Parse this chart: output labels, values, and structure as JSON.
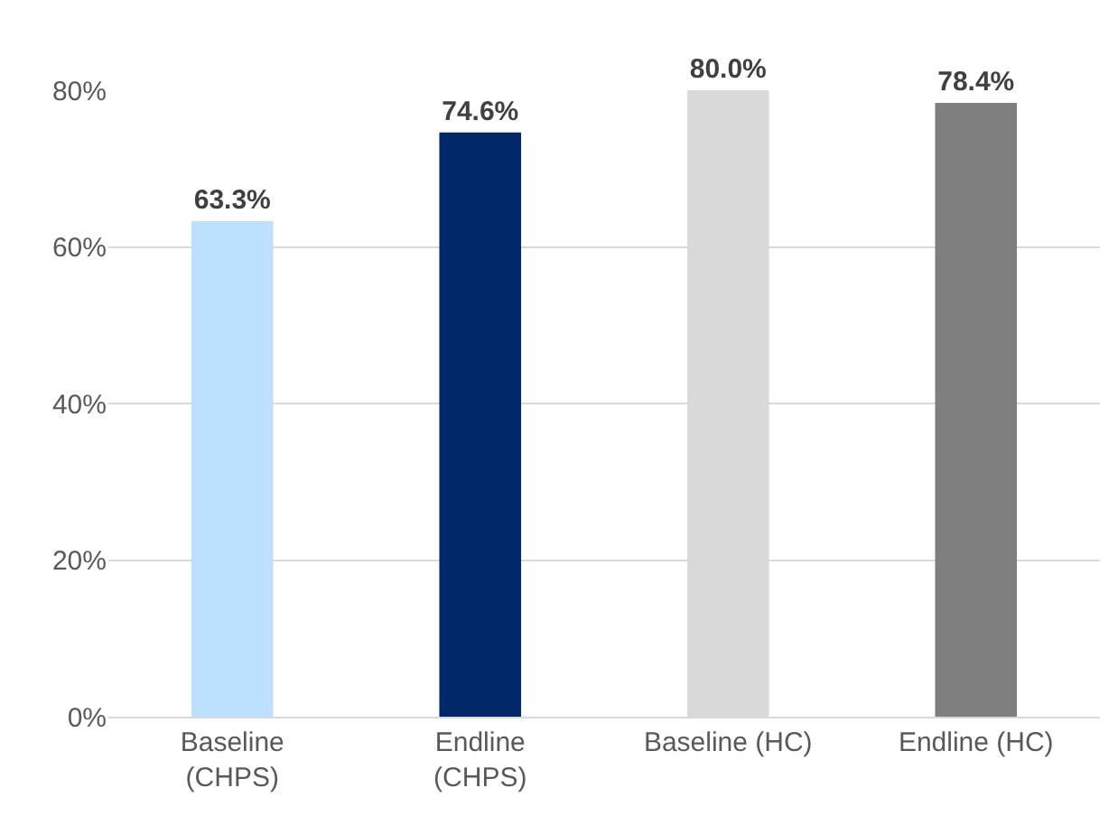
{
  "chart_data": {
    "type": "bar",
    "categories": [
      "Baseline\n(CHPS)",
      "Endline\n(CHPS)",
      "Baseline (HC)",
      "Endline (HC)"
    ],
    "values": [
      63.3,
      74.6,
      80.0,
      78.4
    ],
    "colors": [
      "#bde0fe",
      "#002868",
      "#d9d9d9",
      "#7f7f7f"
    ],
    "value_labels": [
      "63.3%",
      "74.6%",
      "80.0%",
      "78.4%"
    ],
    "ylim": [
      0,
      80
    ],
    "yticks": [
      {
        "value": 0,
        "label": "0%"
      },
      {
        "value": 20,
        "label": "20%"
      },
      {
        "value": 40,
        "label": "40%"
      },
      {
        "value": 60,
        "label": "60%"
      },
      {
        "value": 80,
        "label": "80%"
      }
    ],
    "grid": "y"
  }
}
